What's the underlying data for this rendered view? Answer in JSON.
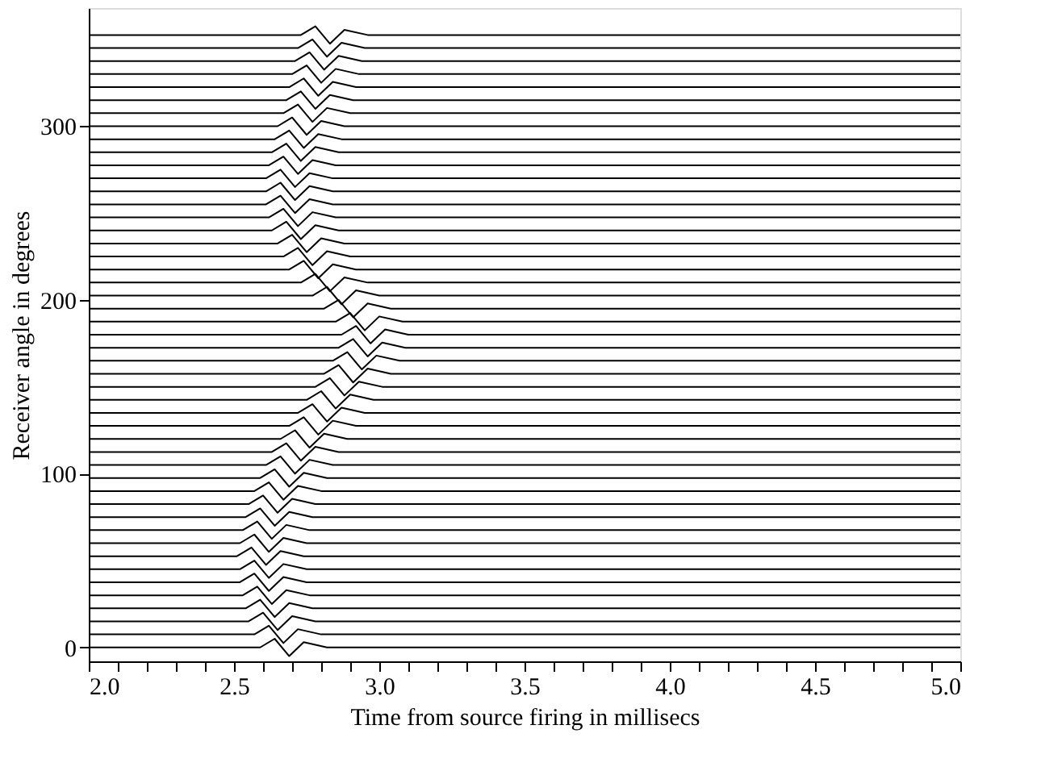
{
  "chart_data": {
    "type": "line",
    "xlabel": "Time from source firing in millisecs",
    "ylabel": "Receiver angle in degrees",
    "xlim": [
      2.0,
      5.0
    ],
    "ylim": [
      -8,
      368
    ],
    "xticks": [
      {
        "value": 2.0,
        "label": "2.0"
      },
      {
        "value": 2.1,
        "label": null
      },
      {
        "value": 2.2,
        "label": null
      },
      {
        "value": 2.3,
        "label": null
      },
      {
        "value": 2.4,
        "label": null
      },
      {
        "value": 2.5,
        "label": "2.5"
      },
      {
        "value": 2.6,
        "label": null
      },
      {
        "value": 2.7,
        "label": null
      },
      {
        "value": 2.8,
        "label": null
      },
      {
        "value": 2.9,
        "label": null
      },
      {
        "value": 3.0,
        "label": "3.0"
      },
      {
        "value": 3.1,
        "label": null
      },
      {
        "value": 3.2,
        "label": null
      },
      {
        "value": 3.3,
        "label": null
      },
      {
        "value": 3.4,
        "label": null
      },
      {
        "value": 3.5,
        "label": "3.5"
      },
      {
        "value": 3.6,
        "label": null
      },
      {
        "value": 3.7,
        "label": null
      },
      {
        "value": 3.8,
        "label": null
      },
      {
        "value": 3.9,
        "label": null
      },
      {
        "value": 4.0,
        "label": "4.0"
      },
      {
        "value": 4.1,
        "label": null
      },
      {
        "value": 4.2,
        "label": null
      },
      {
        "value": 4.3,
        "label": null
      },
      {
        "value": 4.4,
        "label": null
      },
      {
        "value": 4.5,
        "label": "4.5"
      },
      {
        "value": 4.6,
        "label": null
      },
      {
        "value": 4.7,
        "label": null
      },
      {
        "value": 4.8,
        "label": null
      },
      {
        "value": 4.9,
        "label": null
      },
      {
        "value": 5.0,
        "label": "5.0"
      }
    ],
    "yticks": [
      0,
      100,
      200,
      300
    ],
    "grid": false,
    "legend": false,
    "marker": "none",
    "line_style": "solid",
    "series": [
      {
        "color": "#000000",
        "x": [
          2.0,
          2.59,
          2.64,
          2.69,
          2.74,
          2.82,
          5.0
        ],
        "values": [
          0,
          0,
          5,
          -5,
          3,
          0,
          0
        ]
      },
      {
        "color": "#000000",
        "x": [
          2.0,
          2.57,
          2.62,
          2.67,
          2.72,
          2.8,
          5.0
        ],
        "values": [
          7.5,
          7.5,
          12.5,
          2.5,
          10.5,
          7.5,
          7.5
        ]
      },
      {
        "color": "#000000",
        "x": [
          2.0,
          2.55,
          2.6,
          2.65,
          2.7,
          2.78,
          5.0
        ],
        "values": [
          15,
          15,
          20,
          10,
          18,
          15,
          15
        ]
      },
      {
        "color": "#000000",
        "x": [
          2.0,
          2.54,
          2.59,
          2.64,
          2.69,
          2.77,
          5.0
        ],
        "values": [
          22.5,
          22.5,
          27.5,
          17.5,
          25.5,
          22.5,
          22.5
        ]
      },
      {
        "color": "#000000",
        "x": [
          2.0,
          2.53,
          2.58,
          2.63,
          2.68,
          2.76,
          5.0
        ],
        "values": [
          30,
          30,
          35,
          25,
          33,
          30,
          30
        ]
      },
      {
        "color": "#000000",
        "x": [
          2.0,
          2.52,
          2.57,
          2.62,
          2.67,
          2.75,
          5.0
        ],
        "values": [
          37.5,
          37.5,
          42.5,
          32.5,
          40.5,
          37.5,
          37.5
        ]
      },
      {
        "color": "#000000",
        "x": [
          2.0,
          2.52,
          2.57,
          2.62,
          2.67,
          2.75,
          5.0
        ],
        "values": [
          45,
          45,
          50,
          40,
          48,
          45,
          45
        ]
      },
      {
        "color": "#000000",
        "x": [
          2.0,
          2.51,
          2.56,
          2.61,
          2.66,
          2.74,
          5.0
        ],
        "values": [
          52.5,
          52.5,
          57.5,
          47.5,
          55.5,
          52.5,
          52.5
        ]
      },
      {
        "color": "#000000",
        "x": [
          2.0,
          2.52,
          2.57,
          2.62,
          2.67,
          2.75,
          5.0
        ],
        "values": [
          60,
          60,
          65,
          55,
          63,
          60,
          60
        ]
      },
      {
        "color": "#000000",
        "x": [
          2.0,
          2.53,
          2.58,
          2.63,
          2.68,
          2.76,
          5.0
        ],
        "values": [
          67.5,
          67.5,
          72.5,
          62.5,
          70.5,
          67.5,
          67.5
        ]
      },
      {
        "color": "#000000",
        "x": [
          2.0,
          2.54,
          2.59,
          2.64,
          2.69,
          2.77,
          5.0
        ],
        "values": [
          75,
          75,
          80,
          70,
          78,
          75,
          75
        ]
      },
      {
        "color": "#000000",
        "x": [
          2.0,
          2.55,
          2.6,
          2.65,
          2.7,
          2.78,
          5.0
        ],
        "values": [
          82.5,
          82.5,
          87.5,
          77.5,
          85.5,
          82.5,
          82.5
        ]
      },
      {
        "color": "#000000",
        "x": [
          2.0,
          2.57,
          2.62,
          2.67,
          2.72,
          2.8,
          5.0
        ],
        "values": [
          90,
          90,
          95,
          85,
          93,
          90,
          90
        ]
      },
      {
        "color": "#000000",
        "x": [
          2.0,
          2.59,
          2.64,
          2.69,
          2.74,
          2.82,
          5.0
        ],
        "values": [
          97.5,
          97.5,
          102.5,
          92.5,
          100.5,
          97.5,
          97.5
        ]
      },
      {
        "color": "#000000",
        "x": [
          2.0,
          2.61,
          2.66,
          2.71,
          2.76,
          2.84,
          5.0
        ],
        "values": [
          105,
          105,
          110,
          100,
          108,
          105,
          105
        ]
      },
      {
        "color": "#000000",
        "x": [
          2.0,
          2.63,
          2.68,
          2.73,
          2.78,
          2.86,
          5.0
        ],
        "values": [
          112.5,
          112.5,
          117.5,
          107.5,
          115.5,
          112.5,
          112.5
        ]
      },
      {
        "color": "#000000",
        "x": [
          2.0,
          2.66,
          2.71,
          2.76,
          2.81,
          2.89,
          5.0
        ],
        "values": [
          120,
          120,
          125,
          115,
          123,
          120,
          120
        ]
      },
      {
        "color": "#000000",
        "x": [
          2.0,
          2.69,
          2.74,
          2.79,
          2.84,
          2.92,
          5.0
        ],
        "values": [
          127.5,
          127.5,
          132.5,
          122.5,
          130.5,
          127.5,
          127.5
        ]
      },
      {
        "color": "#000000",
        "x": [
          2.0,
          2.72,
          2.77,
          2.82,
          2.87,
          2.95,
          5.0
        ],
        "values": [
          135,
          135,
          140,
          130,
          138,
          135,
          135
        ]
      },
      {
        "color": "#000000",
        "x": [
          2.0,
          2.75,
          2.8,
          2.85,
          2.9,
          2.98,
          5.0
        ],
        "values": [
          142.5,
          142.5,
          147.5,
          137.5,
          145.5,
          142.5,
          142.5
        ]
      },
      {
        "color": "#000000",
        "x": [
          2.0,
          2.78,
          2.83,
          2.88,
          2.93,
          3.01,
          5.0
        ],
        "values": [
          150,
          150,
          155,
          145,
          153,
          150,
          150
        ]
      },
      {
        "color": "#000000",
        "x": [
          2.0,
          2.81,
          2.86,
          2.91,
          2.96,
          3.04,
          5.0
        ],
        "values": [
          157.5,
          157.5,
          162.5,
          152.5,
          160.5,
          157.5,
          157.5
        ]
      },
      {
        "color": "#000000",
        "x": [
          2.0,
          2.84,
          2.89,
          2.94,
          2.99,
          3.07,
          5.0
        ],
        "values": [
          165,
          165,
          170,
          160,
          168,
          165,
          165
        ]
      },
      {
        "color": "#000000",
        "x": [
          2.0,
          2.86,
          2.91,
          2.96,
          3.01,
          3.09,
          5.0
        ],
        "values": [
          172.5,
          172.5,
          177.5,
          167.5,
          175.5,
          172.5,
          172.5
        ]
      },
      {
        "color": "#000000",
        "x": [
          2.0,
          2.87,
          2.92,
          2.97,
          3.02,
          3.1,
          5.0
        ],
        "values": [
          180,
          180,
          185,
          175,
          183,
          180,
          180
        ]
      },
      {
        "color": "#000000",
        "x": [
          2.0,
          2.85,
          2.9,
          2.95,
          3.0,
          3.08,
          5.0
        ],
        "values": [
          187.5,
          187.5,
          192.5,
          182.5,
          190.5,
          187.5,
          187.5
        ]
      },
      {
        "color": "#000000",
        "x": [
          2.0,
          2.81,
          2.86,
          2.91,
          2.96,
          3.04,
          5.0
        ],
        "values": [
          195,
          195,
          200,
          190,
          198,
          195,
          195
        ]
      },
      {
        "color": "#000000",
        "x": [
          2.0,
          2.77,
          2.82,
          2.87,
          2.92,
          3.0,
          5.0
        ],
        "values": [
          202.5,
          202.5,
          207.5,
          197.5,
          205.5,
          202.5,
          202.5
        ]
      },
      {
        "color": "#000000",
        "x": [
          2.0,
          2.73,
          2.78,
          2.83,
          2.88,
          2.96,
          5.0
        ],
        "values": [
          210,
          210,
          215,
          205,
          213,
          210,
          210
        ]
      },
      {
        "color": "#000000",
        "x": [
          2.0,
          2.69,
          2.74,
          2.79,
          2.84,
          2.92,
          5.0
        ],
        "values": [
          217.5,
          217.5,
          222.5,
          212.5,
          220.5,
          217.5,
          217.5
        ]
      },
      {
        "color": "#000000",
        "x": [
          2.0,
          2.67,
          2.72,
          2.77,
          2.82,
          2.9,
          5.0
        ],
        "values": [
          225,
          225,
          230,
          220,
          228,
          225,
          225
        ]
      },
      {
        "color": "#000000",
        "x": [
          2.0,
          2.65,
          2.7,
          2.75,
          2.8,
          2.88,
          5.0
        ],
        "values": [
          232.5,
          232.5,
          237.5,
          227.5,
          235.5,
          232.5,
          232.5
        ]
      },
      {
        "color": "#000000",
        "x": [
          2.0,
          2.63,
          2.68,
          2.73,
          2.78,
          2.86,
          5.0
        ],
        "values": [
          240,
          240,
          245,
          235,
          243,
          240,
          240
        ]
      },
      {
        "color": "#000000",
        "x": [
          2.0,
          2.62,
          2.67,
          2.72,
          2.77,
          2.85,
          5.0
        ],
        "values": [
          247.5,
          247.5,
          252.5,
          242.5,
          250.5,
          247.5,
          247.5
        ]
      },
      {
        "color": "#000000",
        "x": [
          2.0,
          2.61,
          2.66,
          2.71,
          2.76,
          2.84,
          5.0
        ],
        "values": [
          255,
          255,
          260,
          250,
          258,
          255,
          255
        ]
      },
      {
        "color": "#000000",
        "x": [
          2.0,
          2.61,
          2.66,
          2.71,
          2.76,
          2.84,
          5.0
        ],
        "values": [
          262.5,
          262.5,
          267.5,
          257.5,
          265.5,
          262.5,
          262.5
        ]
      },
      {
        "color": "#000000",
        "x": [
          2.0,
          2.61,
          2.66,
          2.71,
          2.76,
          2.84,
          5.0
        ],
        "values": [
          270,
          270,
          275,
          265,
          273,
          270,
          270
        ]
      },
      {
        "color": "#000000",
        "x": [
          2.0,
          2.62,
          2.67,
          2.72,
          2.77,
          2.85,
          5.0
        ],
        "values": [
          277.5,
          277.5,
          282.5,
          272.5,
          280.5,
          277.5,
          277.5
        ]
      },
      {
        "color": "#000000",
        "x": [
          2.0,
          2.63,
          2.68,
          2.73,
          2.78,
          2.86,
          5.0
        ],
        "values": [
          285,
          285,
          290,
          280,
          288,
          285,
          285
        ]
      },
      {
        "color": "#000000",
        "x": [
          2.0,
          2.64,
          2.69,
          2.74,
          2.79,
          2.87,
          5.0
        ],
        "values": [
          292.5,
          292.5,
          297.5,
          287.5,
          295.5,
          292.5,
          292.5
        ]
      },
      {
        "color": "#000000",
        "x": [
          2.0,
          2.65,
          2.7,
          2.75,
          2.8,
          2.88,
          5.0
        ],
        "values": [
          300,
          300,
          305,
          295,
          303,
          300,
          300
        ]
      },
      {
        "color": "#000000",
        "x": [
          2.0,
          2.67,
          2.72,
          2.77,
          2.82,
          2.9,
          5.0
        ],
        "values": [
          307.5,
          307.5,
          312.5,
          302.5,
          310.5,
          307.5,
          307.5
        ]
      },
      {
        "color": "#000000",
        "x": [
          2.0,
          2.68,
          2.73,
          2.78,
          2.83,
          2.91,
          5.0
        ],
        "values": [
          315,
          315,
          320,
          310,
          318,
          315,
          315
        ]
      },
      {
        "color": "#000000",
        "x": [
          2.0,
          2.69,
          2.74,
          2.79,
          2.84,
          2.92,
          5.0
        ],
        "values": [
          322.5,
          322.5,
          327.5,
          317.5,
          325.5,
          322.5,
          322.5
        ]
      },
      {
        "color": "#000000",
        "x": [
          2.0,
          2.7,
          2.75,
          2.8,
          2.85,
          2.93,
          5.0
        ],
        "values": [
          330,
          330,
          335,
          325,
          333,
          330,
          330
        ]
      },
      {
        "color": "#000000",
        "x": [
          2.0,
          2.71,
          2.76,
          2.81,
          2.86,
          2.94,
          5.0
        ],
        "values": [
          337.5,
          337.5,
          342.5,
          332.5,
          340.5,
          337.5,
          337.5
        ]
      },
      {
        "color": "#000000",
        "x": [
          2.0,
          2.72,
          2.77,
          2.82,
          2.87,
          2.95,
          5.0
        ],
        "values": [
          345,
          345,
          350,
          340,
          348,
          345,
          345
        ]
      },
      {
        "color": "#000000",
        "x": [
          2.0,
          2.73,
          2.78,
          2.83,
          2.88,
          2.96,
          5.0
        ],
        "values": [
          352.5,
          352.5,
          357.5,
          347.5,
          355.5,
          352.5,
          352.5
        ]
      }
    ]
  }
}
